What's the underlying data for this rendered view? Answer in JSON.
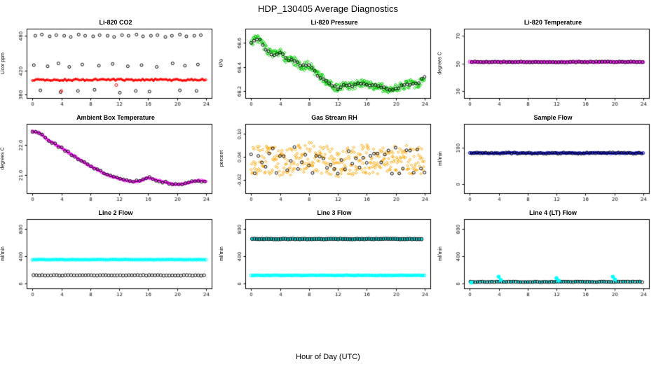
{
  "header": {
    "title": "HDP_130405  Average Diagnostics"
  },
  "footer": {
    "xlabel": "Hour of Day (UTC)"
  },
  "colors": {
    "mean_red": "#FF0000",
    "band_green": "#00CC00",
    "magenta": "#FF00FF",
    "orange": "#FFA500",
    "blue": "#0000CD",
    "cyan": "#00FFFF",
    "black": "#000000"
  },
  "chart_data": [
    {
      "type": "scatter",
      "title": "Li-820 CO2",
      "ylabel": "Licor ppm",
      "xlim": [
        -0.8,
        24.8
      ],
      "ylim": [
        374,
        492
      ],
      "xticks": [
        0,
        4,
        8,
        12,
        16,
        20,
        24
      ],
      "xtick_labels": [
        "0",
        "4",
        "8",
        "12",
        "16",
        "20",
        "24"
      ],
      "yticks": [
        380,
        420,
        480
      ],
      "ytick_labels": [
        "380",
        "420",
        "480"
      ],
      "series": [
        {
          "name": "max-points",
          "color": "#000000",
          "marker": "circle",
          "size": 2,
          "x": [
            0.4,
            1.3,
            2.4,
            3.3,
            4.4,
            5.3,
            6.4,
            7.3,
            8.4,
            9.3,
            10.4,
            11.3,
            12.4,
            13.3,
            14.4,
            15.3,
            16.4,
            17.3,
            18.4,
            19.3,
            20.4,
            21.3,
            22.4,
            23.3
          ],
          "y": [
            480,
            482,
            479,
            481,
            480,
            478,
            482,
            480,
            479,
            481,
            480,
            478,
            481,
            480,
            482,
            479,
            480,
            481,
            478,
            480,
            482,
            479,
            480,
            481
          ]
        },
        {
          "name": "mid-points",
          "color": "#000000",
          "marker": "circle",
          "size": 2,
          "x": [
            0.2,
            2.1,
            3.6,
            5.1,
            6.9,
            9.2,
            11.1,
            13.2,
            15.1,
            17.2,
            19.4,
            21.1,
            22.9
          ],
          "y": [
            430,
            428,
            433,
            427,
            431,
            429,
            432,
            428,
            430,
            427,
            433,
            429,
            431
          ]
        },
        {
          "name": "min-points",
          "color": "#000000",
          "marker": "circle",
          "size": 2,
          "x": [
            1.1,
            3.9,
            6.3,
            8.6,
            12.1,
            14.3,
            16.2,
            20.4,
            22.7
          ],
          "y": [
            387,
            384,
            386,
            388,
            383,
            386,
            385,
            387,
            386
          ]
        },
        {
          "name": "mean-line",
          "color": "#FF0000",
          "marker": "circle",
          "size": 1.5,
          "line": true,
          "lineWidth": 2,
          "gen": {
            "x0": 0,
            "x1": 24,
            "step": 0.25,
            "y": 405,
            "noise": 1.5,
            "seed": 7
          }
        },
        {
          "name": "mean-outliers",
          "color": "#FF0000",
          "marker": "circle",
          "size": 2,
          "x": [
            4.0,
            11.6
          ],
          "y": [
            386,
            396
          ]
        }
      ]
    },
    {
      "type": "scatter",
      "title": "Li-820 Pressure",
      "ylabel": "kPa",
      "xlim": [
        -0.8,
        24.8
      ],
      "ylim": [
        68.14,
        68.72
      ],
      "xticks": [
        0,
        4,
        8,
        12,
        16,
        20,
        24
      ],
      "xtick_labels": [
        "0",
        "4",
        "8",
        "12",
        "16",
        "20",
        "24"
      ],
      "yticks": [
        68.2,
        68.4,
        68.6
      ],
      "ytick_labels": [
        "68.2",
        "68.4",
        "68.6"
      ],
      "series": [
        {
          "name": "minmax-band",
          "color": "#00CC00",
          "marker": "diamond",
          "size": 2,
          "band": {
            "x": [
              0,
              1,
              2,
              3,
              4,
              5,
              6,
              7,
              8,
              9,
              10,
              11,
              12,
              13,
              14,
              15,
              16,
              17,
              18,
              19,
              20,
              21,
              22,
              23,
              24
            ],
            "y": [
              68.6,
              68.65,
              68.55,
              68.5,
              68.53,
              68.46,
              68.45,
              68.4,
              68.42,
              68.34,
              68.3,
              68.25,
              68.22,
              68.25,
              68.24,
              68.26,
              68.25,
              68.24,
              68.23,
              68.21,
              68.22,
              68.24,
              68.26,
              68.25,
              68.32
            ],
            "spread": 0.035,
            "step": 0.08,
            "seed": 3
          }
        },
        {
          "name": "mean-points",
          "color": "#000000",
          "marker": "circle",
          "size": 2,
          "band": {
            "x": [
              0,
              1,
              2,
              3,
              4,
              5,
              6,
              7,
              8,
              9,
              10,
              11,
              12,
              13,
              14,
              15,
              16,
              17,
              18,
              19,
              20,
              21,
              22,
              23,
              24
            ],
            "y": [
              68.6,
              68.65,
              68.55,
              68.5,
              68.53,
              68.46,
              68.45,
              68.4,
              68.42,
              68.34,
              68.3,
              68.25,
              68.22,
              68.25,
              68.24,
              68.26,
              68.25,
              68.24,
              68.23,
              68.21,
              68.22,
              68.24,
              68.26,
              68.25,
              68.32
            ],
            "spread": 0.012,
            "step": 0.4,
            "seed": 11
          }
        }
      ]
    },
    {
      "type": "scatter",
      "title": "Li-820 Temperature",
      "ylabel": "degrees C",
      "xlim": [
        -0.8,
        24.8
      ],
      "ylim": [
        25,
        75
      ],
      "xticks": [
        0,
        4,
        8,
        12,
        16,
        20,
        24
      ],
      "xtick_labels": [
        "0",
        "4",
        "8",
        "12",
        "16",
        "20",
        "24"
      ],
      "yticks": [
        30,
        50,
        70
      ],
      "ytick_labels": [
        "30",
        "50",
        "70"
      ],
      "series": [
        {
          "name": "magenta-line",
          "color": "#FF00FF",
          "line": true,
          "lineWidth": 2,
          "marker": "circle",
          "size": 2.2,
          "gen": {
            "x0": 0,
            "x1": 24,
            "step": 0.25,
            "y": 51,
            "noise": 0.2,
            "seed": 1
          }
        },
        {
          "name": "black-circles",
          "color": "#000000",
          "marker": "circle",
          "size": 2.2,
          "gen": {
            "x0": 0.3,
            "x1": 23.9,
            "step": 0.4,
            "y": 51,
            "noise": 0.3,
            "seed": 5
          }
        }
      ]
    },
    {
      "type": "scatter",
      "title": "Ambient Box Temperature",
      "ylabel": "degrees C",
      "xlim": [
        -0.8,
        24.8
      ],
      "ylim": [
        20.4,
        22.7
      ],
      "xticks": [
        0,
        4,
        8,
        12,
        16,
        20,
        24
      ],
      "xtick_labels": [
        "0",
        "4",
        "8",
        "12",
        "16",
        "20",
        "24"
      ],
      "yticks": [
        21.0,
        22.0
      ],
      "ytick_labels": [
        "21.0",
        "22.0"
      ],
      "series": [
        {
          "name": "magenta-trace",
          "color": "#FF00FF",
          "marker": "circle",
          "size": 1.8,
          "linePath": true,
          "lineWidth": 1.5,
          "band": {
            "x": [
              0,
              1,
              2,
              3,
              4,
              5,
              6,
              7,
              8,
              9,
              10,
              11,
              12,
              13,
              14,
              15,
              16,
              17,
              18,
              19,
              20,
              21,
              22,
              23,
              24
            ],
            "y": [
              22.45,
              22.4,
              22.2,
              22.05,
              21.9,
              21.75,
              21.6,
              21.45,
              21.3,
              21.18,
              21.05,
              20.95,
              20.88,
              20.82,
              20.78,
              20.82,
              20.92,
              20.85,
              20.78,
              20.72,
              20.68,
              20.72,
              20.78,
              20.82,
              20.8
            ],
            "spread": 0.02,
            "step": 0.2,
            "seed": 9
          }
        },
        {
          "name": "black-circles",
          "color": "#000000",
          "marker": "circle",
          "size": 2,
          "band": {
            "x": [
              0,
              1,
              2,
              3,
              4,
              5,
              6,
              7,
              8,
              9,
              10,
              11,
              12,
              13,
              14,
              15,
              16,
              17,
              18,
              19,
              20,
              21,
              22,
              23,
              24
            ],
            "y": [
              22.45,
              22.4,
              22.2,
              22.05,
              21.9,
              21.75,
              21.6,
              21.45,
              21.3,
              21.18,
              21.05,
              20.95,
              20.88,
              20.82,
              20.78,
              20.82,
              20.92,
              20.85,
              20.78,
              20.72,
              20.68,
              20.72,
              20.78,
              20.82,
              20.8
            ],
            "spread": 0.035,
            "step": 0.45,
            "seed": 13
          }
        }
      ]
    },
    {
      "type": "scatter",
      "title": "Gas Stream RH",
      "ylabel": "percent",
      "xlim": [
        -0.8,
        24.8
      ],
      "ylim": [
        -0.055,
        0.125
      ],
      "xticks": [
        0,
        4,
        8,
        12,
        16,
        20,
        24
      ],
      "xtick_labels": [
        "0",
        "4",
        "8",
        "12",
        "16",
        "20",
        "24"
      ],
      "yticks": [
        -0.02,
        0.04,
        0.1
      ],
      "ytick_labels": [
        "-0.02",
        "0.04",
        "0.10"
      ],
      "series": [
        {
          "name": "orange-cloud",
          "color": "#FFA500",
          "marker": "diamond",
          "size": 1.8,
          "band": {
            "x": [
              0,
              2,
              4,
              6,
              8,
              10,
              12,
              14,
              16,
              18,
              20,
              22,
              24
            ],
            "y": [
              0.03,
              0.035,
              0.028,
              0.03,
              0.04,
              0.032,
              0.025,
              0.03,
              0.035,
              0.028,
              0.03,
              0.033,
              0.03
            ],
            "spread": 0.038,
            "step": 0.07,
            "seed": 21
          }
        },
        {
          "name": "black-circles",
          "color": "#000000",
          "marker": "circle",
          "size": 2,
          "band": {
            "x": [
              0,
              24
            ],
            "y": [
              0.03,
              0.03
            ],
            "spread": 0.035,
            "step": 0.5,
            "seed": 17
          }
        }
      ]
    },
    {
      "type": "scatter",
      "title": "Sample Flow",
      "ylabel": "ml/min",
      "xlim": [
        -0.8,
        24.8
      ],
      "ylim": [
        -25,
        165
      ],
      "xticks": [
        0,
        4,
        8,
        12,
        16,
        20,
        24
      ],
      "xtick_labels": [
        "0",
        "4",
        "8",
        "12",
        "16",
        "20",
        "24"
      ],
      "yticks": [
        0,
        100
      ],
      "ytick_labels": [
        "0",
        "100"
      ],
      "series": [
        {
          "name": "blue-line",
          "color": "#0000CD",
          "line": true,
          "lineWidth": 2,
          "marker": "circle",
          "size": 2,
          "gen": {
            "x0": 0,
            "x1": 24,
            "step": 0.25,
            "y": 85,
            "noise": 1,
            "seed": 2
          }
        },
        {
          "name": "black-circles",
          "color": "#000000",
          "marker": "circle",
          "size": 2,
          "gen": {
            "x0": 0.2,
            "x1": 23.9,
            "step": 0.4,
            "y": 85,
            "noise": 2,
            "seed": 4
          }
        }
      ]
    },
    {
      "type": "scatter",
      "title": "Line 2 Flow",
      "ylabel": "ml/min",
      "xlim": [
        -0.8,
        24.8
      ],
      "ylim": [
        -70,
        940
      ],
      "xticks": [
        0,
        4,
        8,
        12,
        16,
        20,
        24
      ],
      "xtick_labels": [
        "0",
        "4",
        "8",
        "12",
        "16",
        "20",
        "24"
      ],
      "yticks": [
        0,
        400,
        800
      ],
      "ytick_labels": [
        "0",
        "400",
        "800"
      ],
      "series": [
        {
          "name": "cyan-row-350",
          "color": "#00FFFF",
          "line": true,
          "lineWidth": 2.5,
          "marker": "circle",
          "size": 2.2,
          "gen": {
            "x0": 0,
            "x1": 24,
            "step": 0.25,
            "y": 350,
            "noise": 3,
            "seed": 6
          }
        },
        {
          "name": "black-circles-120",
          "color": "#000000",
          "marker": "circle",
          "size": 2.2,
          "gen": {
            "x0": 0.15,
            "x1": 23.9,
            "step": 0.4,
            "y": 120,
            "noise": 4,
            "seed": 8
          }
        }
      ]
    },
    {
      "type": "scatter",
      "title": "Line 3 Flow",
      "ylabel": "ml/min",
      "xlim": [
        -0.8,
        24.8
      ],
      "ylim": [
        -70,
        940
      ],
      "xticks": [
        0,
        4,
        8,
        12,
        16,
        20,
        24
      ],
      "xtick_labels": [
        "0",
        "4",
        "8",
        "12",
        "16",
        "20",
        "24"
      ],
      "yticks": [
        0,
        400,
        800
      ],
      "ytick_labels": [
        "0",
        "400",
        "800"
      ],
      "series": [
        {
          "name": "cyan-fill-650",
          "color": "#00FFFF",
          "filled": true,
          "marker": "circle",
          "size": 2.4,
          "gen": {
            "x0": 0.15,
            "x1": 23.85,
            "step": 0.33,
            "y": 650,
            "noise": 4,
            "seed": 10
          }
        },
        {
          "name": "black-circles-650",
          "color": "#000000",
          "marker": "circle",
          "size": 2.4,
          "gen": {
            "x0": 0.15,
            "x1": 23.85,
            "step": 0.33,
            "y": 650,
            "noise": 4,
            "seed": 10
          }
        },
        {
          "name": "cyan-row-120",
          "color": "#00FFFF",
          "line": true,
          "lineWidth": 2.5,
          "marker": "circle",
          "size": 2.2,
          "gen": {
            "x0": 0,
            "x1": 24,
            "step": 0.25,
            "y": 120,
            "noise": 3,
            "seed": 12
          }
        }
      ]
    },
    {
      "type": "scatter",
      "title": "Line 4 (LT) Flow",
      "ylabel": "ml/min",
      "xlim": [
        -0.8,
        24.8
      ],
      "ylim": [
        -70,
        940
      ],
      "xticks": [
        0,
        4,
        8,
        12,
        16,
        20,
        24
      ],
      "xtick_labels": [
        "0",
        "4",
        "8",
        "12",
        "16",
        "20",
        "24"
      ],
      "yticks": [
        0,
        400,
        800
      ],
      "ytick_labels": [
        "0",
        "400",
        "800"
      ],
      "series": [
        {
          "name": "cyan-base",
          "color": "#00FFFF",
          "filled": true,
          "marker": "circle",
          "size": 2.2,
          "gen": {
            "x0": 0.1,
            "x1": 23.9,
            "step": 0.5,
            "y": 25,
            "noise": 3,
            "seed": 14
          }
        },
        {
          "name": "black-circles-base",
          "color": "#000000",
          "marker": "circle",
          "size": 2.2,
          "gen": {
            "x0": 0.1,
            "x1": 23.9,
            "step": 0.33,
            "y": 25,
            "noise": 4,
            "seed": 16
          }
        },
        {
          "name": "cyan-spikes",
          "color": "#00FFFF",
          "filled": true,
          "marker": "circle",
          "size": 2.8,
          "x": [
            0.2,
            4.0,
            4.3,
            12.0,
            12.3,
            19.8,
            20.1
          ],
          "y": [
            15,
            100,
            55,
            80,
            45,
            100,
            60
          ]
        }
      ]
    }
  ]
}
